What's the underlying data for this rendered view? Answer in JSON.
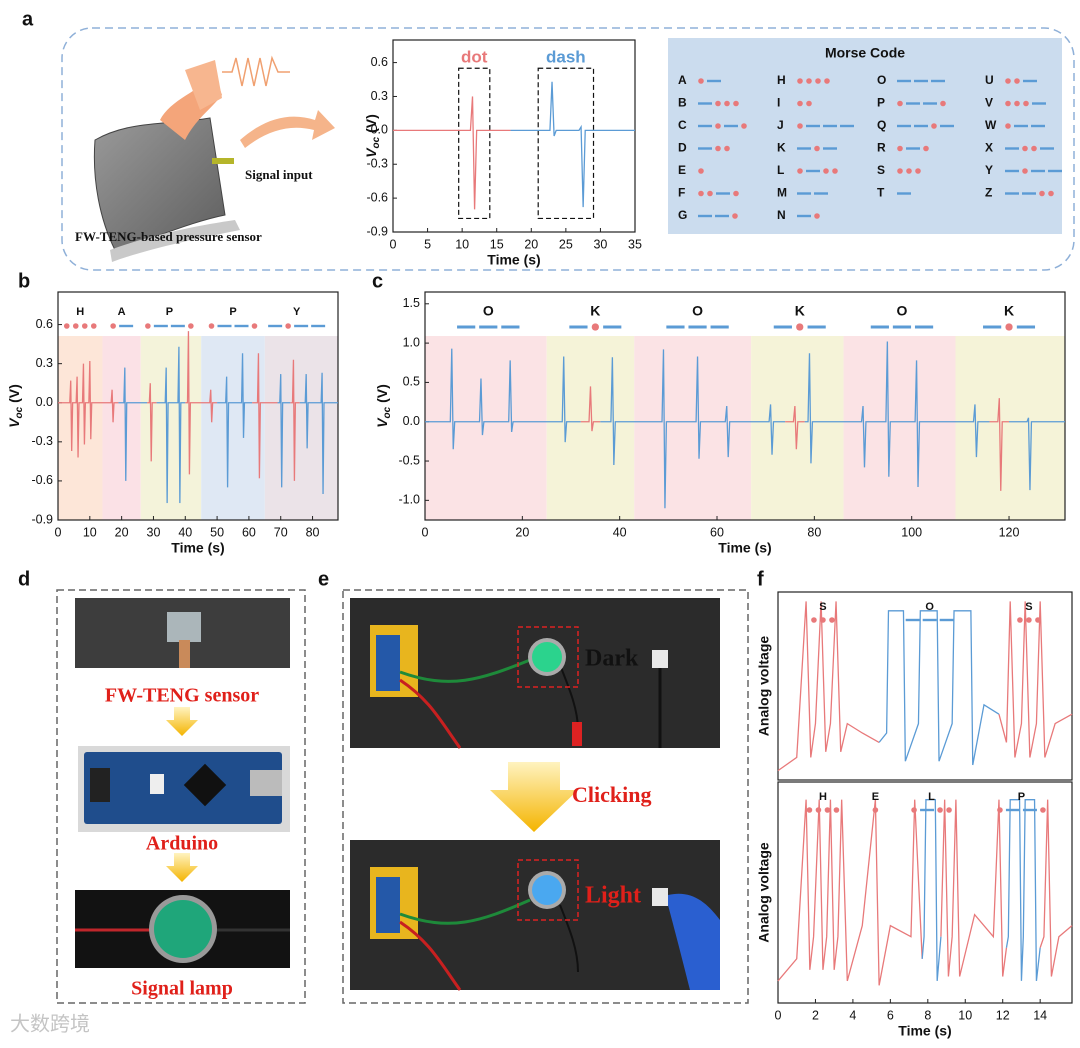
{
  "panel_labels": [
    "a",
    "b",
    "c",
    "d",
    "e",
    "f"
  ],
  "illustration": {
    "signal_input": "Signal input",
    "sensor_caption": "FW-TENG-based pressure sensor"
  },
  "morse": {
    "title": "Morse Code",
    "entries": [
      {
        "letter": "A",
        "code": ".-"
      },
      {
        "letter": "B",
        "code": "-..."
      },
      {
        "letter": "C",
        "code": "-.-."
      },
      {
        "letter": "D",
        "code": "-.."
      },
      {
        "letter": "E",
        "code": "."
      },
      {
        "letter": "F",
        "code": "..-."
      },
      {
        "letter": "G",
        "code": "--."
      },
      {
        "letter": "H",
        "code": "...."
      },
      {
        "letter": "I",
        "code": ".."
      },
      {
        "letter": "J",
        "code": ".---"
      },
      {
        "letter": "K",
        "code": "-.-"
      },
      {
        "letter": "L",
        "code": ".-.."
      },
      {
        "letter": "M",
        "code": "--"
      },
      {
        "letter": "N",
        "code": "-."
      },
      {
        "letter": "O",
        "code": "---"
      },
      {
        "letter": "P",
        "code": ".--."
      },
      {
        "letter": "Q",
        "code": "--.-"
      },
      {
        "letter": "R",
        "code": ".-."
      },
      {
        "letter": "S",
        "code": "..."
      },
      {
        "letter": "T",
        "code": "-"
      },
      {
        "letter": "U",
        "code": "..-"
      },
      {
        "letter": "V",
        "code": "...-"
      },
      {
        "letter": "W",
        "code": ".--"
      },
      {
        "letter": "X",
        "code": "-..-"
      },
      {
        "letter": "Y",
        "code": "-.--"
      },
      {
        "letter": "Z",
        "code": "--.."
      }
    ]
  },
  "panel_d": {
    "steps": [
      "FW-TENG sensor",
      "Arduino",
      "Signal lamp"
    ]
  },
  "panel_e": {
    "dark": "Dark",
    "clicking": "Clicking",
    "light": "Light"
  },
  "watermark": "大数跨境",
  "chart_data": [
    {
      "type": "line",
      "xlim": [
        0,
        35
      ],
      "xticks": [
        0,
        5,
        10,
        15,
        20,
        25,
        30,
        35
      ],
      "ylim": [
        -0.9,
        0.8
      ],
      "yticks": [
        0.6,
        0.3,
        {
          "value": 0,
          "label": "0.0"
        },
        -0.3,
        -0.6,
        -0.9
      ],
      "xlabel": "Time (s)",
      "ylabel_parts": [
        "V",
        "oc",
        " (V)"
      ],
      "series": [
        {
          "color": "#e8797a",
          "x": [
            0,
            11.2,
            11.5,
            11.8,
            12.1,
            17
          ],
          "values": [
            0,
            0,
            0.3,
            -0.7,
            0,
            0
          ]
        },
        {
          "color": "#5b9bd5",
          "x": [
            17,
            22.7,
            23,
            23.3,
            23.6,
            26.9,
            27.2,
            27.5,
            27.8,
            35
          ],
          "values": [
            0,
            0,
            0.43,
            -0.05,
            0,
            0,
            0.03,
            -0.68,
            0,
            0
          ]
        }
      ],
      "boxes": [
        {
          "label": "dot",
          "color": "#e8797a",
          "x": [
            9.5,
            14
          ],
          "y": [
            -0.78,
            0.55
          ]
        },
        {
          "label": "dash",
          "color": "#5b9bd5",
          "x": [
            21,
            29
          ],
          "y": [
            -0.78,
            0.55
          ]
        }
      ]
    },
    {
      "type": "line",
      "xlim": [
        0,
        88
      ],
      "xticks": [
        0,
        10,
        20,
        30,
        40,
        50,
        60,
        70,
        80
      ],
      "ylim": [
        -0.9,
        0.85
      ],
      "yticks": [
        0.6,
        0.3,
        {
          "value": 0,
          "label": "0.0"
        },
        -0.3,
        -0.6,
        -0.9
      ],
      "xlabel": "Time (s)",
      "ylabel_parts": [
        "V",
        "oc",
        " (V)"
      ],
      "bands": [
        {
          "from": 0,
          "to": 14,
          "color": "#fde6d8"
        },
        {
          "from": 14,
          "to": 26,
          "color": "#fbe1e6"
        },
        {
          "from": 26,
          "to": 45,
          "color": "#f4f3da"
        },
        {
          "from": 45,
          "to": 65,
          "color": "#dfe8f4"
        },
        {
          "from": 65,
          "to": 88,
          "color": "#ebe3e8"
        }
      ],
      "annotations": [
        {
          "text": "H",
          "code": "....",
          "x": 7
        },
        {
          "text": "A",
          "code": ".-",
          "x": 20
        },
        {
          "text": "P",
          "code": ".--.",
          "x": 35
        },
        {
          "text": "P",
          "code": ".--.",
          "x": 55
        },
        {
          "text": "Y",
          "code": "-.--",
          "x": 75
        }
      ],
      "series": [
        {
          "color": "#e8797a",
          "x": [
            0,
            3.7,
            4,
            4.3,
            4.6,
            5.7,
            6,
            6.3,
            6.6,
            7.7,
            8,
            8.3,
            8.6,
            9.7,
            10,
            10.3,
            10.6,
            16.7,
            17,
            17.3,
            17.6,
            19,
            null,
            28,
            28.7,
            29,
            29.3,
            29.6,
            31,
            null,
            40,
            40.7,
            41,
            41.3,
            41.6,
            47.7,
            48,
            48.3,
            48.6,
            50,
            null,
            61,
            62.7,
            63,
            63.3,
            63.6,
            69,
            null,
            73,
            73.7,
            74,
            74.3,
            74.6,
            76
          ],
          "values": [
            0,
            0,
            0.17,
            -0.37,
            0,
            0,
            0.2,
            -0.42,
            0,
            0,
            0.3,
            -0.32,
            0,
            0,
            0.32,
            -0.28,
            0,
            0,
            0.1,
            -0.15,
            0,
            0,
            null,
            0,
            0,
            0.15,
            -0.45,
            0,
            0,
            null,
            0,
            0,
            0.55,
            -0.55,
            0,
            0,
            0.1,
            -0.15,
            0,
            0,
            null,
            0,
            0,
            0.38,
            -0.58,
            0,
            0,
            null,
            0,
            0,
            0.33,
            -0.6,
            0,
            0
          ]
        },
        {
          "color": "#5b9bd5",
          "x": [
            19,
            20.7,
            21,
            21.3,
            21.6,
            28,
            null,
            31,
            33.7,
            34,
            34.3,
            34.6,
            37.7,
            38,
            38.3,
            38.6,
            40,
            null,
            50,
            52.7,
            53,
            53.3,
            53.6,
            57.7,
            58,
            58.3,
            58.6,
            61,
            null,
            69,
            69.7,
            70,
            70.3,
            70.6,
            73,
            null,
            76,
            77.7,
            78,
            78.3,
            78.6,
            82.7,
            83,
            83.3,
            83.6,
            88
          ],
          "values": [
            0,
            0,
            0.27,
            -0.6,
            0,
            0,
            null,
            0,
            0,
            0.27,
            -0.77,
            0,
            0,
            0.43,
            -0.77,
            0,
            0,
            null,
            0,
            0,
            0.2,
            -0.65,
            0,
            0,
            0.38,
            -0.27,
            0,
            0,
            null,
            0,
            0,
            0.22,
            -0.65,
            0,
            0,
            null,
            0,
            0,
            0.22,
            -0.35,
            0,
            0,
            0.23,
            -0.7,
            0,
            0
          ]
        }
      ]
    },
    {
      "type": "line",
      "xlim": [
        0,
        131.5
      ],
      "xticks": [
        0,
        20,
        40,
        60,
        80,
        100,
        120
      ],
      "ylim": [
        -1.25,
        1.65
      ],
      "yticks": [
        1.5,
        {
          "value": 1,
          "label": "1.0"
        },
        0.5,
        {
          "value": 0,
          "label": "0.0"
        },
        -0.5,
        {
          "value": -1,
          "label": "-1.0"
        }
      ],
      "xlabel": "Time (s)",
      "ylabel_parts": [
        "V",
        "oc",
        " (V)"
      ],
      "bands": [
        {
          "from": 0,
          "to": 25,
          "color": "#fbe3e5"
        },
        {
          "from": 25,
          "to": 43,
          "color": "#f5f3d8"
        },
        {
          "from": 43,
          "to": 67,
          "color": "#fbe3e5"
        },
        {
          "from": 67,
          "to": 86,
          "color": "#f5f3d8"
        },
        {
          "from": 86,
          "to": 109,
          "color": "#fbe3e5"
        },
        {
          "from": 109,
          "to": 131.5,
          "color": "#f5f3d8"
        }
      ],
      "annotations": [
        {
          "text": "O",
          "code": "---",
          "x": 13
        },
        {
          "text": "K",
          "code": "-.-",
          "x": 35
        },
        {
          "text": "O",
          "code": "---",
          "x": 56
        },
        {
          "text": "K",
          "code": "-.-",
          "x": 77
        },
        {
          "text": "O",
          "code": "---",
          "x": 98
        },
        {
          "text": "K",
          "code": "-.-",
          "x": 120
        }
      ],
      "series": [
        {
          "color": "#5b9bd5",
          "x": [
            0,
            5.2,
            5.5,
            5.8,
            6.1,
            11.2,
            11.5,
            11.8,
            12.1,
            17.2,
            17.5,
            17.8,
            18.1,
            28.2,
            28.5,
            28.8,
            29.1,
            32,
            null,
            36,
            38.2,
            38.5,
            38.8,
            39.1,
            48.7,
            49,
            49.3,
            49.6,
            55.7,
            56,
            56.3,
            56.6,
            61.7,
            62,
            62.3,
            62.6,
            70.7,
            71,
            71.3,
            71.6,
            74,
            null,
            78,
            78.7,
            79,
            79.3,
            79.6,
            89.7,
            90,
            90.3,
            90.6,
            94.7,
            95,
            95.3,
            95.6,
            100.7,
            101,
            101.3,
            101.6,
            112.7,
            113,
            113.3,
            113.6,
            116,
            null,
            120,
            123.7,
            124,
            124.3,
            124.6,
            131.5
          ],
          "values": [
            0,
            0,
            0.93,
            -0.35,
            0,
            0,
            0.55,
            -0.17,
            0,
            0,
            0.78,
            -0.13,
            0,
            0,
            0.83,
            -0.26,
            0,
            0,
            null,
            0,
            0,
            0.82,
            -0.55,
            0,
            0,
            0.92,
            -1.1,
            0,
            0,
            0.83,
            -0.47,
            0,
            0,
            0.2,
            -0.45,
            0,
            0,
            0.22,
            -0.42,
            0,
            0,
            null,
            0,
            0,
            0.87,
            -0.53,
            0,
            0,
            0.2,
            -0.58,
            0,
            0,
            1.02,
            -0.7,
            0,
            0,
            0.78,
            -0.83,
            0,
            0,
            0.22,
            -0.45,
            0,
            0,
            null,
            0,
            0,
            0.05,
            -0.87,
            0,
            0
          ]
        },
        {
          "color": "#e8797a",
          "x": [
            32,
            33.7,
            34,
            34.3,
            34.6,
            36,
            null,
            74,
            75.7,
            76,
            76.3,
            76.6,
            78,
            null,
            116,
            117.7,
            118,
            118.3,
            118.6,
            120
          ],
          "values": [
            0,
            0,
            0.45,
            -0.12,
            0,
            0,
            null,
            0,
            0,
            0.2,
            -0.35,
            0,
            0,
            null,
            0,
            0,
            0.3,
            -0.88,
            0,
            0
          ]
        }
      ]
    },
    {
      "type": "line",
      "xlim": [
        0,
        15.7
      ],
      "ylim": [
        0,
        1
      ],
      "ylabel": "Analog voltage",
      "annotations": [
        {
          "text": "S",
          "code": "...",
          "x": 2.4
        },
        {
          "text": "O",
          "code": "---",
          "x": 8.1
        },
        {
          "text": "S",
          "code": "...",
          "x": 13.4
        }
      ],
      "series": [
        {
          "color": "#e8797a",
          "x": [
            0,
            1.0,
            1.5,
            1.75,
            2.0,
            2.3,
            2.55,
            2.8,
            3.1,
            3.35,
            3.7,
            4.5,
            5.4,
            null,
            11.8,
            12.2,
            12.4,
            12.65,
            13.0,
            13.2,
            13.45,
            13.8,
            14.0,
            14.25,
            14.8,
            15.7
          ],
          "values": [
            0.05,
            0.12,
            0.95,
            0.12,
            0.3,
            0.95,
            0.15,
            0.3,
            0.95,
            0.15,
            0.3,
            0.25,
            0.2,
            null,
            0.35,
            0.2,
            0.95,
            0.12,
            0.3,
            0.95,
            0.12,
            0.3,
            0.95,
            0.12,
            0.3,
            0.35
          ]
        },
        {
          "color": "#5b9bd5",
          "x": [
            5.4,
            5.8,
            5.9,
            6.7,
            6.8,
            7.5,
            7.6,
            8.5,
            8.6,
            9.3,
            9.4,
            10.3,
            10.4,
            11.0,
            11.8
          ],
          "values": [
            0.2,
            0.25,
            0.9,
            0.9,
            0.1,
            0.3,
            0.9,
            0.9,
            0.1,
            0.3,
            0.9,
            0.9,
            0.08,
            0.4,
            0.35
          ]
        }
      ]
    },
    {
      "type": "line",
      "xlim": [
        0,
        15.7
      ],
      "xticks": [
        0,
        2,
        4,
        6,
        8,
        10,
        12,
        14
      ],
      "ylim": [
        0,
        1
      ],
      "xlabel": "Time (s)",
      "ylabel": "Analog voltage",
      "annotations": [
        {
          "text": "H",
          "code": "....",
          "x": 2.4
        },
        {
          "text": "E",
          "code": ".",
          "x": 5.2
        },
        {
          "text": "L",
          "code": ".-..",
          "x": 8.2
        },
        {
          "text": "P",
          "code": ".--.",
          "x": 13.0
        }
      ],
      "series": [
        {
          "color": "#e8797a",
          "x": [
            0,
            1.0,
            1.5,
            1.7,
            1.9,
            2.2,
            2.4,
            2.6,
            2.8,
            3.0,
            3.2,
            3.4,
            3.7,
            4.5,
            5.2,
            5.4,
            6.0,
            7.1,
            7.3,
            7.7,
            null,
            8.7,
            8.9,
            9.1,
            9.3,
            9.5,
            9.7,
            10.5,
            11.5,
            11.8,
            12.0,
            12.2,
            null,
            14.0,
            14.2,
            14.4,
            14.6,
            15.0,
            15.7
          ],
          "values": [
            0.1,
            0.2,
            0.92,
            0.15,
            0.3,
            0.92,
            0.15,
            0.3,
            0.92,
            0.15,
            0.3,
            0.92,
            0.1,
            0.35,
            0.92,
            0.08,
            0.35,
            0.3,
            0.92,
            0.2,
            null,
            0.3,
            0.92,
            0.12,
            0.3,
            0.92,
            0.12,
            0.4,
            0.3,
            0.92,
            0.12,
            0.25,
            null,
            0.25,
            0.3,
            0.92,
            0.12,
            0.3,
            0.35
          ]
        },
        {
          "color": "#5b9bd5",
          "x": [
            7.7,
            7.8,
            7.9,
            8.4,
            8.5,
            8.7,
            null,
            12.2,
            12.3,
            12.4,
            12.9,
            13.0,
            13.1,
            13.2,
            13.7,
            13.8,
            14.0
          ],
          "values": [
            0.2,
            0.3,
            0.92,
            0.92,
            0.1,
            0.3,
            null,
            0.25,
            0.3,
            0.92,
            0.92,
            0.1,
            0.3,
            0.92,
            0.92,
            0.1,
            0.25
          ]
        }
      ]
    }
  ]
}
